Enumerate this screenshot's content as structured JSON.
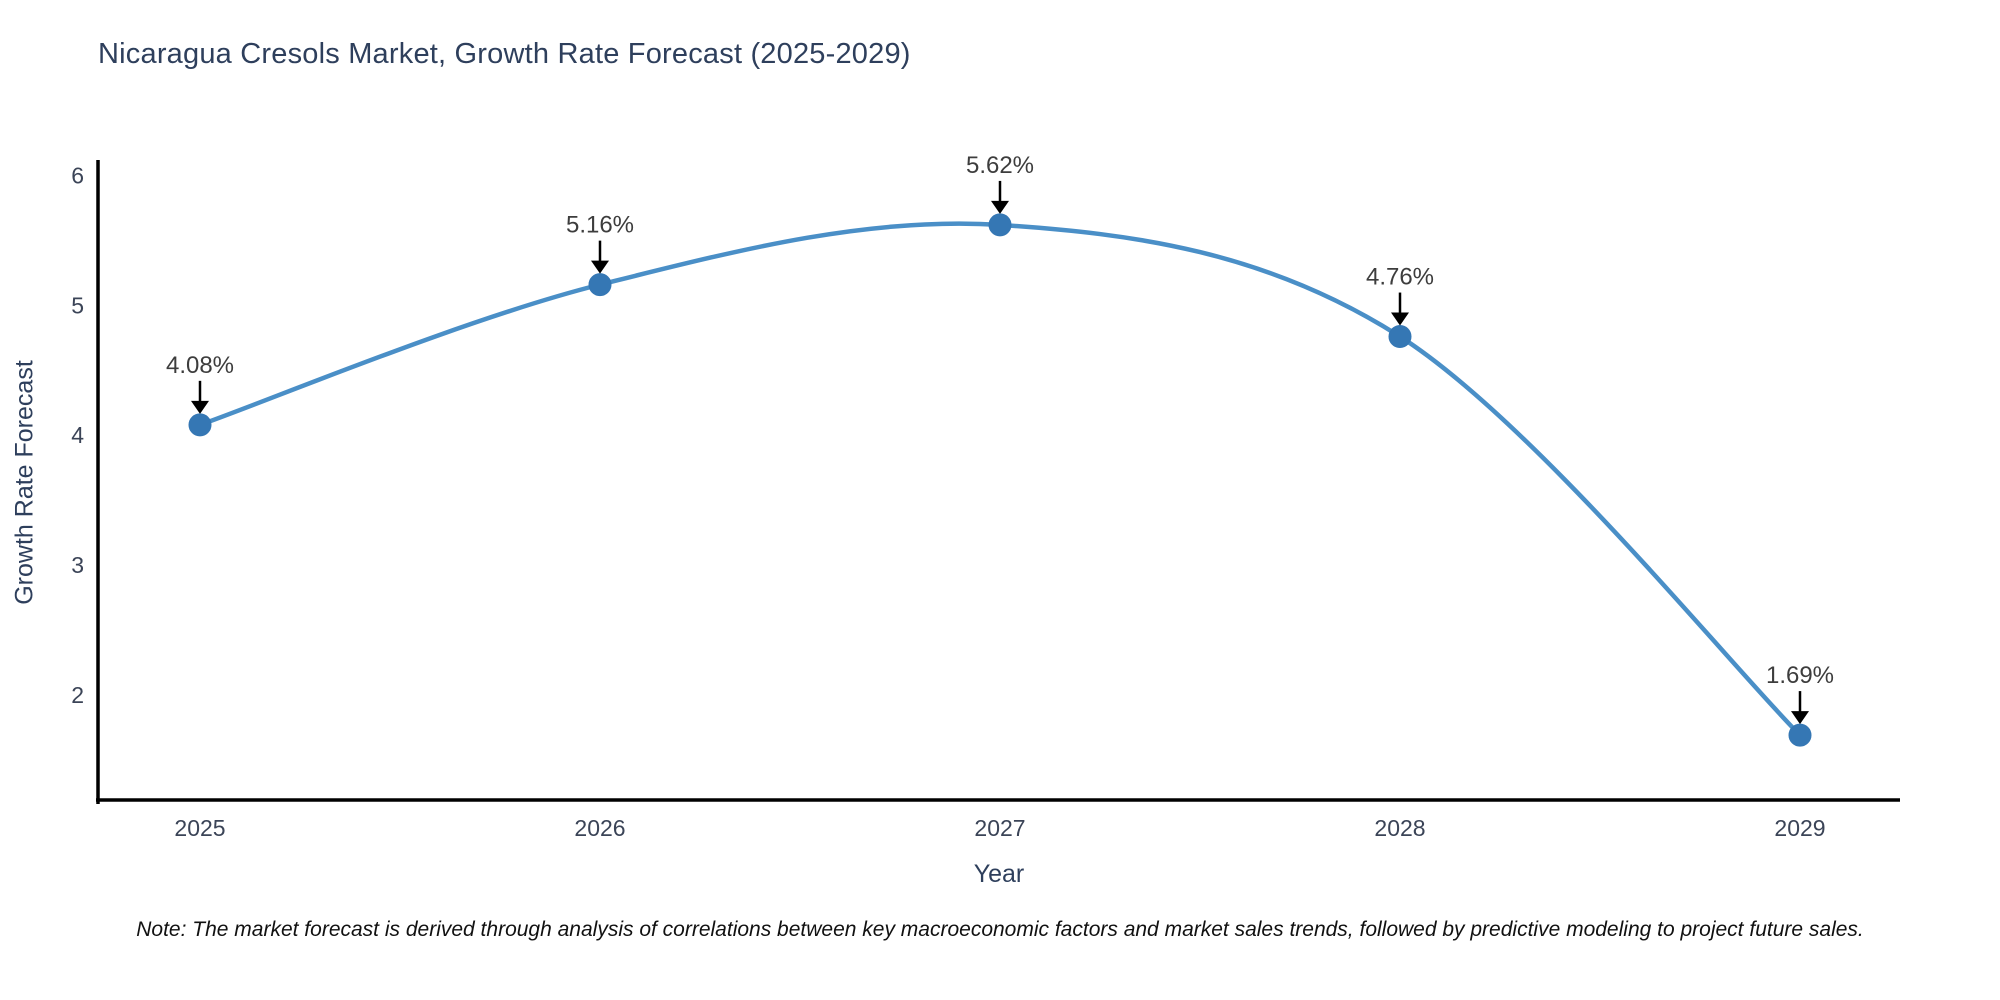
{
  "chart_data": {
    "type": "line",
    "title": "Nicaragua Cresols Market, Growth Rate Forecast (2025-2029)",
    "xlabel": "Year",
    "ylabel": "Growth Rate Forecast",
    "x": [
      2025,
      2026,
      2027,
      2028,
      2029
    ],
    "values": [
      4.08,
      5.16,
      5.62,
      4.76,
      1.69
    ],
    "point_labels": [
      "4.08%",
      "5.16%",
      "5.62%",
      "4.76%",
      "1.69%"
    ],
    "x_ticks": [
      "2025",
      "2026",
      "2027",
      "2028",
      "2029"
    ],
    "y_ticks": [
      2,
      3,
      4,
      5,
      6
    ],
    "xlim": [
      2024.745,
      2029.25
    ],
    "ylim": [
      1.19,
      6.12
    ],
    "grid": false,
    "legend": "none",
    "colors": {
      "line": "#4a8fc7",
      "marker": "#3577b4",
      "annotation_arrow": "#000000",
      "annotation_text": "#3d3d3d",
      "axis_spine": "#000000",
      "title": "#2e3f5c",
      "axis_label": "#2e3f5c",
      "tick_label": "#3b4457",
      "background": "#ffffff"
    },
    "note": "Note: The market forecast is derived through analysis of correlations between key macroeconomic factors and market sales trends, followed by predictive modeling to project future sales."
  }
}
